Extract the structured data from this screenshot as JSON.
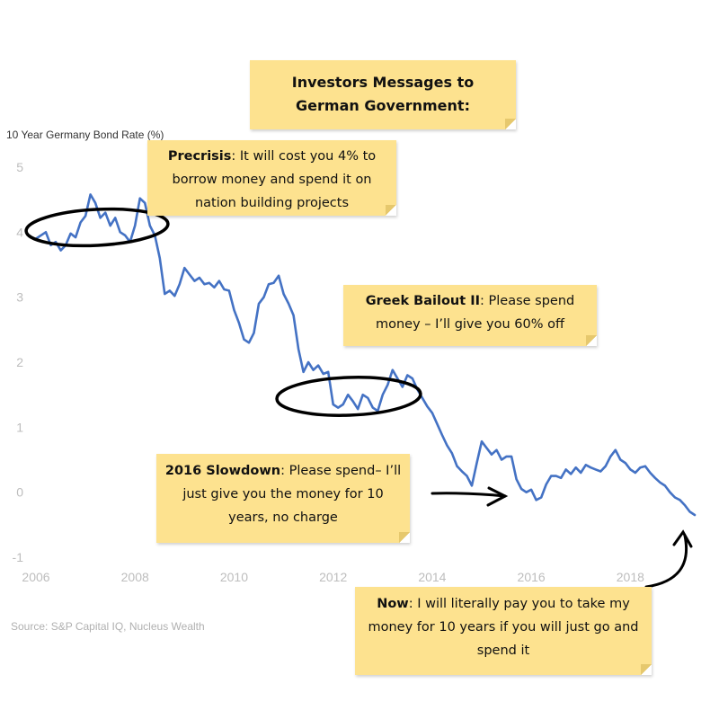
{
  "chart_data": {
    "type": "line",
    "ylabel": "10 Year Germany Bond Rate (%)",
    "xlim": [
      2006,
      2019.3
    ],
    "ylim": [
      -1,
      5
    ],
    "x_ticks": [
      "2006",
      "2008",
      "2010",
      "2012",
      "2014",
      "2016",
      "2018"
    ],
    "y_ticks": [
      "5",
      "4",
      "3",
      "2",
      "1",
      "0",
      "-1"
    ],
    "line_color": "#4472c4",
    "grid": false,
    "series": [
      {
        "x": [
          2006.0,
          2006.1,
          2006.2,
          2006.3,
          2006.4,
          2006.5,
          2006.6,
          2006.7,
          2006.8,
          2006.9,
          2007.0,
          2007.1,
          2007.2,
          2007.3,
          2007.4,
          2007.5,
          2007.6,
          2007.7,
          2007.8,
          2007.9,
          2008.0,
          2008.1,
          2008.2,
          2008.3,
          2008.4,
          2008.5,
          2008.6,
          2008.7,
          2008.8,
          2008.9,
          2009.0,
          2009.1,
          2009.2,
          2009.3,
          2009.4,
          2009.5,
          2009.6,
          2009.7,
          2009.8,
          2009.9,
          2010.0,
          2010.1,
          2010.2,
          2010.3,
          2010.4,
          2010.5,
          2010.6,
          2010.7,
          2010.8,
          2010.9,
          2011.0,
          2011.1,
          2011.2,
          2011.3,
          2011.4,
          2011.5,
          2011.6,
          2011.7,
          2011.8,
          2011.9,
          2012.0,
          2012.1,
          2012.2,
          2012.3,
          2012.4,
          2012.5,
          2012.6,
          2012.7,
          2012.8,
          2012.9,
          2013.0,
          2013.1,
          2013.2,
          2013.3,
          2013.4,
          2013.5,
          2013.6,
          2013.7,
          2013.8,
          2013.9,
          2014.0,
          2014.1,
          2014.2,
          2014.3,
          2014.4,
          2014.5,
          2014.6,
          2014.7,
          2014.8,
          2014.9,
          2015.0,
          2015.1,
          2015.2,
          2015.3,
          2015.4,
          2015.5,
          2015.6,
          2015.7,
          2015.8,
          2015.9,
          2016.0,
          2016.1,
          2016.2,
          2016.3,
          2016.4,
          2016.5,
          2016.6,
          2016.7,
          2016.8,
          2016.9,
          2017.0,
          2017.1,
          2017.2,
          2017.3,
          2017.4,
          2017.5,
          2017.6,
          2017.7,
          2017.8,
          2017.9,
          2018.0,
          2018.1,
          2018.2,
          2018.3,
          2018.4,
          2018.5,
          2018.6,
          2018.7,
          2018.8,
          2018.9,
          2019.0,
          2019.1,
          2019.2,
          2019.3
        ],
        "values": [
          3.9,
          3.95,
          4.0,
          3.8,
          3.85,
          3.72,
          3.8,
          3.98,
          3.92,
          4.15,
          4.25,
          4.58,
          4.45,
          4.22,
          4.3,
          4.1,
          4.22,
          4.0,
          3.95,
          3.85,
          4.1,
          4.52,
          4.45,
          4.1,
          3.95,
          3.6,
          3.05,
          3.1,
          3.02,
          3.2,
          3.45,
          3.35,
          3.25,
          3.3,
          3.2,
          3.22,
          3.15,
          3.25,
          3.12,
          3.1,
          2.8,
          2.6,
          2.35,
          2.3,
          2.45,
          2.9,
          3.0,
          3.2,
          3.22,
          3.33,
          3.05,
          2.9,
          2.72,
          2.2,
          1.85,
          2.0,
          1.88,
          1.95,
          1.82,
          1.85,
          1.35,
          1.3,
          1.35,
          1.5,
          1.4,
          1.28,
          1.5,
          1.45,
          1.3,
          1.25,
          1.5,
          1.65,
          1.88,
          1.75,
          1.62,
          1.8,
          1.75,
          1.58,
          1.45,
          1.32,
          1.22,
          1.05,
          0.88,
          0.72,
          0.6,
          0.4,
          0.32,
          0.25,
          0.1,
          0.45,
          0.78,
          0.68,
          0.58,
          0.65,
          0.5,
          0.55,
          0.55,
          0.2,
          0.05,
          0.0,
          0.04,
          -0.12,
          -0.08,
          0.12,
          0.25,
          0.25,
          0.22,
          0.35,
          0.28,
          0.38,
          0.3,
          0.42,
          0.38,
          0.35,
          0.32,
          0.4,
          0.55,
          0.65,
          0.5,
          0.45,
          0.35,
          0.3,
          0.38,
          0.4,
          0.3,
          0.22,
          0.15,
          0.1,
          0.0,
          -0.08,
          -0.12,
          -0.2,
          -0.3,
          -0.35
        ]
      }
    ]
  },
  "notes": {
    "title": {
      "line1": "Investors Messages to",
      "line2": "German Government:"
    },
    "precrisis": {
      "bold": "Precrisis",
      "rest": ": It will cost you 4% to borrow money and spend it on nation building projects"
    },
    "greek": {
      "bold": "Greek Bailout II",
      "rest": ": Please spend money – I’ll give you 60% off"
    },
    "slowdown": {
      "bold": "2016 Slowdown",
      "rest": ": Please spend– I’ll just give you the money for 10 years, no charge"
    },
    "now": {
      "bold": "Now",
      "rest": ": I will literally pay you to take my money for 10 years if you will just go and spend it"
    }
  },
  "source": "Source: S&P Capital IQ, Nucleus Wealth"
}
